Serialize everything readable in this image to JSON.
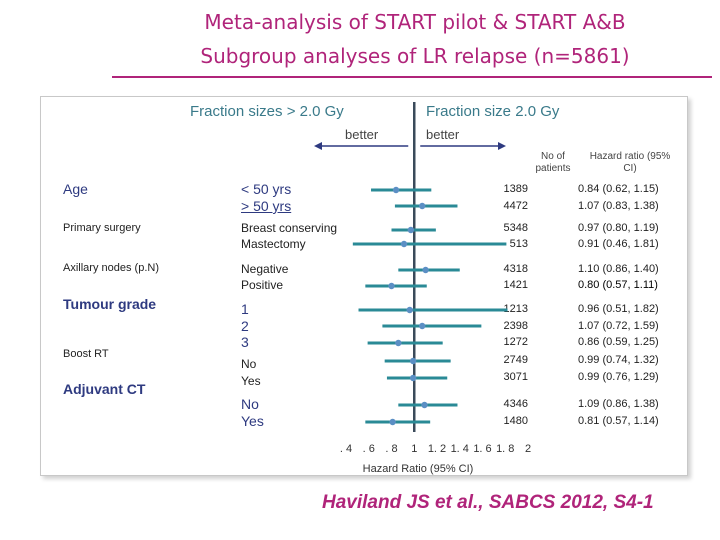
{
  "title_line1": "Meta-analysis of START pilot & START A&B",
  "title_line2": "Subgroup analyses of LR relapse (n=5861)",
  "header_left": "Fraction sizes > 2.0 Gy",
  "header_right": "Fraction size 2.0 Gy",
  "better_left": "better",
  "better_right": "better",
  "col_patients": "No of patients",
  "col_hr": "Hazard ratio (95% CI)",
  "citation": "Haviland JS et al., SABCS 2012,  S4-1",
  "colors": {
    "title": "#b0247a",
    "line": "#2a8a96",
    "point": "#5b8fc4",
    "subgroup": "#2e3a80"
  },
  "chart_data": {
    "type": "forest",
    "title": "Subgroup analyses of LR relapse (n=5861)",
    "xlabel": "Hazard Ratio (95% CI)",
    "xlim": [
      0.4,
      2.0
    ],
    "ref_line": 1.0,
    "tick_labels": [
      ". 4",
      ". 6",
      ". 8",
      "1",
      "1. 2",
      "1. 4",
      "1. 6",
      "1. 8",
      "2"
    ],
    "tick_values": [
      0.4,
      0.6,
      0.8,
      1.0,
      1.2,
      1.4,
      1.6,
      1.8,
      2.0
    ],
    "subgroups": [
      {
        "name": "Age",
        "categories": [
          "< 50 yrs",
          "> 50 yrs"
        ]
      },
      {
        "name": "Primary surgery",
        "categories": [
          "Breast conserving",
          "Mastectomy"
        ]
      },
      {
        "name": "Axillary nodes (p.N)",
        "categories": [
          "Negative",
          "Positive"
        ]
      },
      {
        "name": "Tumour grade",
        "categories": [
          "1",
          "2",
          "3"
        ]
      },
      {
        "name": "Boost RT",
        "categories": [
          "No",
          "Yes"
        ]
      },
      {
        "name": "Adjuvant CT",
        "categories": [
          "No",
          "Yes"
        ]
      }
    ],
    "rows": [
      {
        "n": "1389",
        "hr_text": "0.84 (0.62, 1.15)",
        "hr": 0.84,
        "lo": 0.62,
        "hi": 1.15
      },
      {
        "n": "4472",
        "hr_text": "1.07 (0.83, 1.38)",
        "hr": 1.07,
        "lo": 0.83,
        "hi": 1.38
      },
      {
        "n": "5348",
        "hr_text": "0.97 (0.80, 1.19)",
        "hr": 0.97,
        "lo": 0.8,
        "hi": 1.19
      },
      {
        "n": "513",
        "hr_text": "0.91 (0.46, 1.81)",
        "hr": 0.91,
        "lo": 0.46,
        "hi": 1.81
      },
      {
        "n": "4318",
        "hr_text": "1.10 (0.86, 1.40)",
        "hr": 1.1,
        "lo": 0.86,
        "hi": 1.4
      },
      {
        "n": "1421",
        "hr_text": "0.80 (0.57, 1.11)",
        "hr": 0.8,
        "lo": 0.57,
        "hi": 1.11
      },
      {
        "n": "1213",
        "hr_text": "0.96 (0.51, 1.82)",
        "hr": 0.96,
        "lo": 0.51,
        "hi": 1.82
      },
      {
        "n": "2398",
        "hr_text": "1.07 (0.72, 1.59)",
        "hr": 1.07,
        "lo": 0.72,
        "hi": 1.59
      },
      {
        "n": "1272",
        "hr_text": "0.86 (0.59, 1.25)",
        "hr": 0.86,
        "lo": 0.59,
        "hi": 1.25
      },
      {
        "n": "2749",
        "hr_text": "0.99 (0.74, 1.32)",
        "hr": 0.99,
        "lo": 0.74,
        "hi": 1.32
      },
      {
        "n": "3071",
        "hr_text": "0.99 (0.76, 1.29)",
        "hr": 0.99,
        "lo": 0.76,
        "hi": 1.29
      },
      {
        "n": "4346",
        "hr_text": "1.09 (0.86, 1.38)",
        "hr": 1.09,
        "lo": 0.86,
        "hi": 1.38
      },
      {
        "n": "1480",
        "hr_text": "0.81 (0.57, 1.14)",
        "hr": 0.81,
        "lo": 0.57,
        "hi": 1.14
      }
    ]
  }
}
